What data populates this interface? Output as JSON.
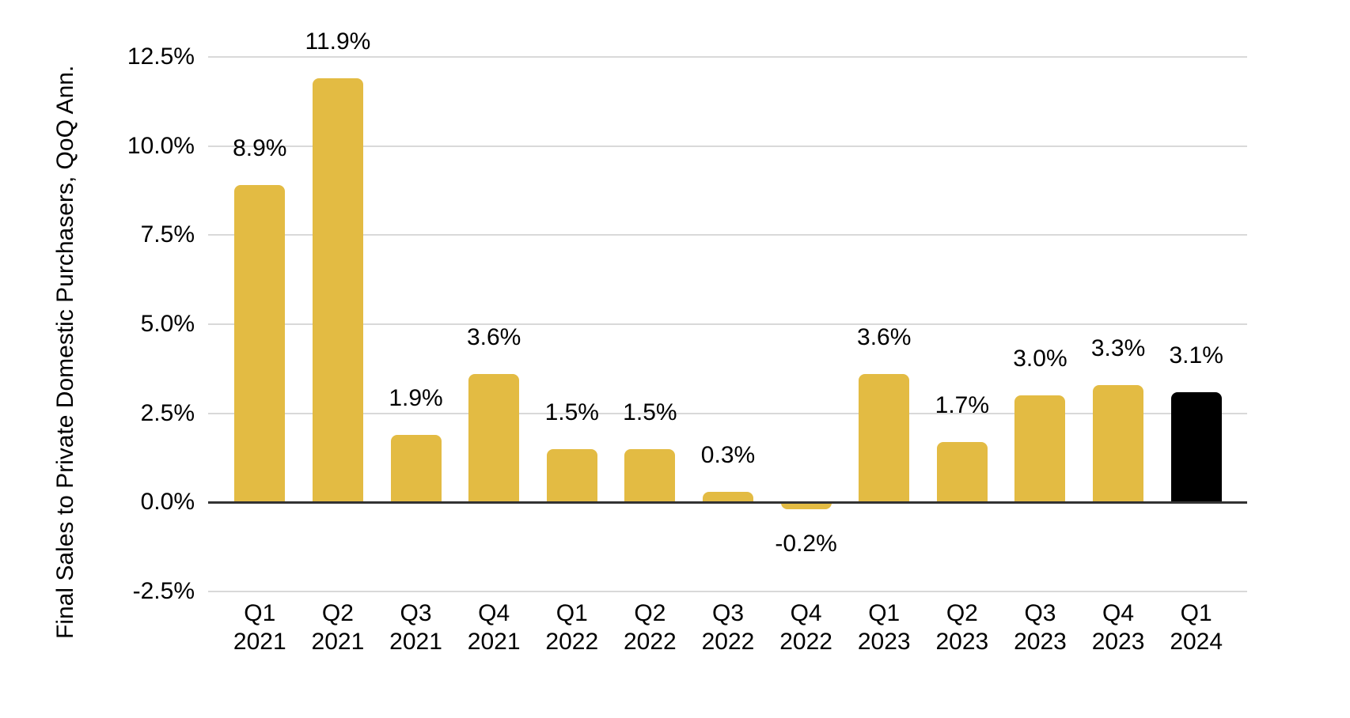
{
  "chart_data": {
    "type": "bar",
    "title": "",
    "xlabel": "",
    "ylabel": "Final Sales to Private Domestic Purchasers, QoQ Ann.",
    "categories": [
      "Q1 2021",
      "Q2 2021",
      "Q3 2021",
      "Q4 2021",
      "Q1 2022",
      "Q2 2022",
      "Q3 2022",
      "Q4 2022",
      "Q1 2023",
      "Q2 2023",
      "Q3 2023",
      "Q4 2023",
      "Q1 2024"
    ],
    "values": [
      8.9,
      11.9,
      1.9,
      3.6,
      1.5,
      1.5,
      0.3,
      -0.2,
      3.6,
      1.7,
      3.0,
      3.3,
      3.1
    ],
    "value_labels": [
      "8.9%",
      "11.9%",
      "1.9%",
      "3.6%",
      "1.5%",
      "1.5%",
      "0.3%",
      "-0.2%",
      "3.6%",
      "1.7%",
      "3.0%",
      "3.3%",
      "3.1%"
    ],
    "highlight_index": 12,
    "ylim": [
      -2.5,
      12.5
    ],
    "yticks": [
      {
        "value": 12.5,
        "label": "12.5%"
      },
      {
        "value": 10.0,
        "label": "10.0%"
      },
      {
        "value": 7.5,
        "label": "7.5%"
      },
      {
        "value": 5.0,
        "label": "5.0%"
      },
      {
        "value": 2.5,
        "label": "2.5%"
      },
      {
        "value": 0.0,
        "label": "0.0%"
      },
      {
        "value": -2.5,
        "label": "-2.5%"
      }
    ],
    "grid": true,
    "legend": false,
    "colors": {
      "bar": "#E3BB43",
      "highlight_bar": "#000000",
      "gridline": "#D9D9D9",
      "zero_line": "#333333",
      "text": "#000000",
      "background": "#FFFFFF"
    }
  }
}
